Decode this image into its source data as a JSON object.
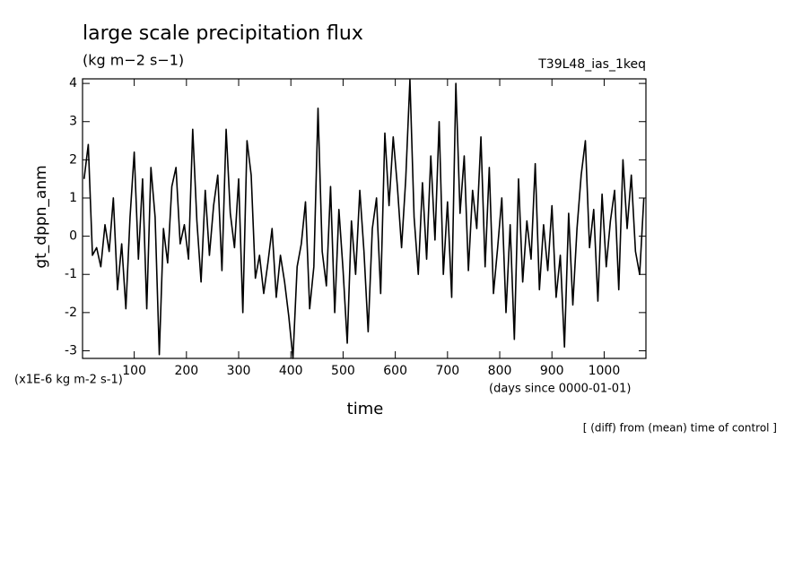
{
  "chart_data": {
    "type": "line",
    "title": "large scale precipitation flux",
    "subtitle": "(kg m−2 s−1)",
    "run_label": "T39L48_ias_1keq",
    "y_label": "gt_dppn_anm",
    "y_unit_label": "(x1E-6 kg m-2 s-1)",
    "x_unit_label": "(days since 0000-01-01)",
    "x_label": "time",
    "note": "[ (diff) from (mean) time of control ]",
    "color": "#000000",
    "xlim": [
      1,
      1080
    ],
    "ylim": [
      -3.2,
      4.12
    ],
    "xticks": [
      100,
      200,
      300,
      400,
      500,
      600,
      700,
      800,
      900,
      1000
    ],
    "yticks": [
      -3,
      -2,
      -1,
      0,
      1,
      2,
      3,
      4
    ],
    "x": [
      4,
      12,
      20,
      28,
      36,
      44,
      52,
      60,
      68,
      76,
      84,
      92,
      100,
      108,
      116,
      124,
      132,
      140,
      148,
      156,
      164,
      172,
      180,
      188,
      196,
      204,
      212,
      220,
      228,
      236,
      244,
      252,
      260,
      268,
      276,
      284,
      292,
      300,
      308,
      316,
      324,
      332,
      340,
      348,
      356,
      364,
      372,
      380,
      388,
      396,
      404,
      412,
      420,
      428,
      436,
      444,
      452,
      460,
      468,
      476,
      484,
      492,
      500,
      508,
      516,
      524,
      532,
      540,
      548,
      556,
      564,
      572,
      580,
      588,
      596,
      604,
      612,
      620,
      628,
      636,
      644,
      652,
      660,
      668,
      676,
      684,
      692,
      700,
      708,
      716,
      724,
      732,
      740,
      748,
      756,
      764,
      772,
      780,
      788,
      796,
      804,
      812,
      820,
      828,
      836,
      844,
      852,
      860,
      868,
      876,
      884,
      892,
      900,
      908,
      916,
      924,
      932,
      940,
      948,
      956,
      964,
      972,
      980,
      988,
      996,
      1004,
      1012,
      1020,
      1028,
      1036,
      1044,
      1052,
      1060,
      1068,
      1076
    ],
    "values": [
      1.5,
      2.4,
      -0.5,
      -0.3,
      -0.8,
      0.3,
      -0.4,
      1.0,
      -1.4,
      -0.2,
      -1.9,
      0.5,
      2.2,
      -0.6,
      1.5,
      -1.9,
      1.8,
      0.5,
      -3.1,
      0.2,
      -0.7,
      1.3,
      1.8,
      -0.2,
      0.3,
      -0.6,
      2.8,
      0.4,
      -1.2,
      1.2,
      -0.5,
      0.8,
      1.6,
      -0.9,
      2.8,
      0.6,
      -0.3,
      1.5,
      -2.0,
      2.5,
      1.6,
      -1.1,
      -0.5,
      -1.5,
      -0.7,
      0.2,
      -1.6,
      -0.5,
      -1.2,
      -2.1,
      -3.2,
      -0.8,
      -0.2,
      0.9,
      -1.9,
      -0.8,
      3.35,
      -0.4,
      -1.3,
      1.3,
      -2.0,
      0.7,
      -0.9,
      -2.8,
      0.4,
      -1.0,
      1.2,
      -0.4,
      -2.5,
      0.2,
      1.0,
      -1.5,
      2.7,
      0.8,
      2.6,
      1.3,
      -0.3,
      1.5,
      4.1,
      0.5,
      -1.0,
      1.4,
      -0.6,
      2.1,
      -0.1,
      3.0,
      -1.0,
      0.9,
      -1.6,
      4.0,
      0.6,
      2.1,
      -0.9,
      1.2,
      0.2,
      2.6,
      -0.8,
      1.8,
      -1.5,
      -0.3,
      1.0,
      -2.0,
      0.3,
      -2.7,
      1.5,
      -1.2,
      0.4,
      -0.6,
      1.9,
      -1.4,
      0.3,
      -0.9,
      0.8,
      -1.6,
      -0.5,
      -2.9,
      0.6,
      -1.8,
      0.2,
      1.6,
      2.5,
      -0.3,
      0.7,
      -1.7,
      1.1,
      -0.8,
      0.4,
      1.2,
      -1.4,
      2.0,
      0.2,
      1.6,
      -0.4,
      -1.0,
      1.0
    ]
  }
}
